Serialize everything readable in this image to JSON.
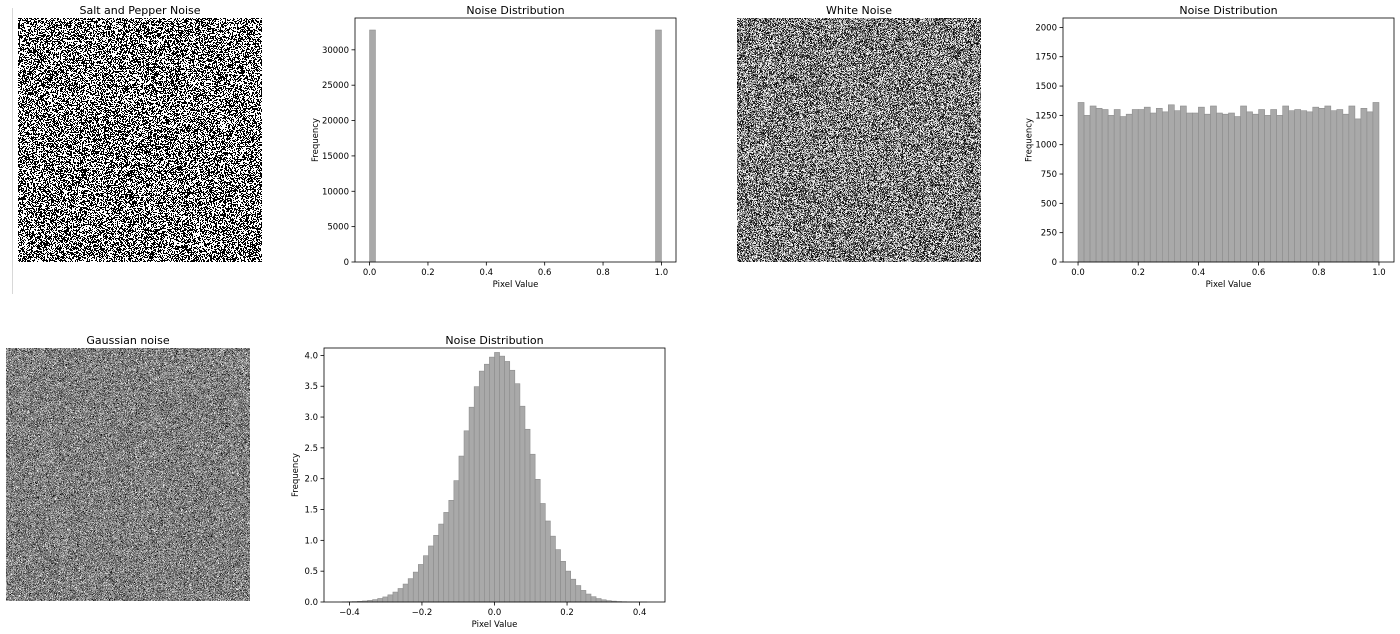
{
  "images": [
    {
      "title": "Salt and Pepper Noise",
      "kind": "salt-pepper"
    },
    {
      "title": "White Noise",
      "kind": "white"
    },
    {
      "title": "Gaussian noise",
      "kind": "gaussian"
    }
  ],
  "chart_data": [
    {
      "type": "bar",
      "title": "Noise Distribution",
      "xlabel": "Pixel Value",
      "ylabel": "Frequency",
      "xlim": [
        -0.05,
        1.05
      ],
      "ylim": [
        0,
        34500
      ],
      "xticks": [
        0.0,
        0.2,
        0.4,
        0.6,
        0.8,
        1.0
      ],
      "xtick_labels": [
        "0.0",
        "0.2",
        "0.4",
        "0.6",
        "0.8",
        "1.0"
      ],
      "yticks": [
        0,
        5000,
        10000,
        15000,
        20000,
        25000,
        30000
      ],
      "ytick_labels": [
        "0",
        "5000",
        "10000",
        "15000",
        "20000",
        "25000",
        "30000"
      ],
      "bin_range": [
        0,
        1
      ],
      "bin_count": 50,
      "bars": [
        {
          "bin_start": 0.0,
          "value": 32800
        },
        {
          "bin_start": 0.98,
          "value": 32800
        }
      ]
    },
    {
      "type": "bar",
      "title": "Noise Distribution",
      "xlabel": "Pixel Value",
      "ylabel": "Frequency",
      "xlim": [
        -0.05,
        1.05
      ],
      "ylim": [
        0,
        2080
      ],
      "xticks": [
        0.0,
        0.2,
        0.4,
        0.6,
        0.8,
        1.0
      ],
      "xtick_labels": [
        "0.0",
        "0.2",
        "0.4",
        "0.6",
        "0.8",
        "1.0"
      ],
      "yticks": [
        0,
        250,
        500,
        750,
        1000,
        1250,
        1500,
        1750,
        2000
      ],
      "ytick_labels": [
        "0",
        "250",
        "500",
        "750",
        "1000",
        "1250",
        "1500",
        "1750",
        "2000"
      ],
      "bin_range": [
        0,
        1
      ],
      "bin_count": 50,
      "values": [
        1360,
        1250,
        1330,
        1310,
        1300,
        1250,
        1300,
        1240,
        1260,
        1300,
        1300,
        1320,
        1270,
        1310,
        1280,
        1340,
        1290,
        1330,
        1270,
        1270,
        1320,
        1260,
        1330,
        1270,
        1260,
        1270,
        1240,
        1330,
        1280,
        1260,
        1300,
        1250,
        1300,
        1250,
        1330,
        1290,
        1300,
        1290,
        1280,
        1320,
        1310,
        1330,
        1290,
        1300,
        1260,
        1330,
        1220,
        1310,
        1280,
        1360
      ]
    },
    {
      "type": "bar",
      "title": "Noise Distribution",
      "xlabel": "Pixel Value",
      "ylabel": "Frequency",
      "xlim": [
        -0.47,
        0.47
      ],
      "ylim": [
        0,
        4.12
      ],
      "xticks": [
        -0.4,
        -0.2,
        0.0,
        0.2,
        0.4
      ],
      "xtick_labels": [
        "−0.4",
        "−0.2",
        "0.0",
        "0.2",
        "0.4"
      ],
      "yticks": [
        0,
        0.5,
        1.0,
        1.5,
        2.0,
        2.5,
        3.0,
        3.5,
        4.0
      ],
      "ytick_labels": [
        "0.0",
        "0.5",
        "1.0",
        "1.5",
        "2.0",
        "2.5",
        "3.0",
        "3.5",
        "4.0"
      ],
      "bin_range": [
        -0.42,
        0.42
      ],
      "bin_count": 60,
      "values": [
        0.003,
        0.005,
        0.007,
        0.011,
        0.017,
        0.026,
        0.039,
        0.057,
        0.082,
        0.116,
        0.161,
        0.219,
        0.291,
        0.379,
        0.485,
        0.609,
        0.751,
        0.909,
        1.081,
        1.264,
        1.453,
        1.649,
        1.969,
        2.367,
        2.777,
        3.16,
        3.493,
        3.745,
        3.857,
        3.972,
        4.048,
        3.988,
        3.902,
        3.759,
        3.541,
        3.176,
        2.802,
        2.397,
        1.99,
        1.598,
        1.314,
        1.068,
        0.85,
        0.66,
        0.501,
        0.37,
        0.267,
        0.188,
        0.129,
        0.086,
        0.056,
        0.036,
        0.022,
        0.014,
        0.008,
        0.005,
        0.003,
        0.002,
        0.001,
        0.001
      ]
    }
  ]
}
